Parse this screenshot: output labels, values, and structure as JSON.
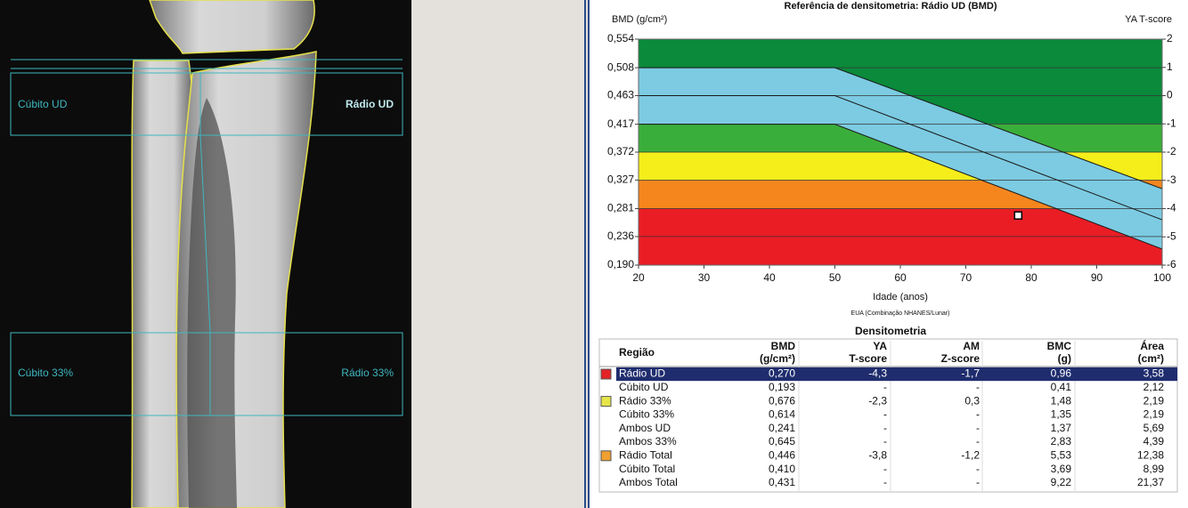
{
  "image": {
    "labels": [
      "Cúbito UD",
      "Rádio UD",
      "Cúbito 33%",
      "Rádio 33%"
    ]
  },
  "chart_data": {
    "type": "line",
    "title": "Referência de densitometria: Rádio UD (BMD)",
    "y_label": "BMD (g/cm²)",
    "y2_label": "YA T-score",
    "x_label": "Idade (anos)",
    "note": "EUA (Combinação NHANES/Lunar)",
    "x": [
      20,
      50,
      100
    ],
    "xlim": [
      20,
      100
    ],
    "xticks": [
      20,
      30,
      40,
      50,
      60,
      70,
      80,
      90,
      100
    ],
    "ylim": [
      0.19,
      0.554
    ],
    "yticks": [
      {
        "value": 0.19,
        "label": "0,190"
      },
      {
        "value": 0.236,
        "label": "0,236"
      },
      {
        "value": 0.281,
        "label": "0,281"
      },
      {
        "value": 0.327,
        "label": "0,327"
      },
      {
        "value": 0.372,
        "label": "0,372"
      },
      {
        "value": 0.417,
        "label": "0,417"
      },
      {
        "value": 0.463,
        "label": "0,463"
      },
      {
        "value": 0.508,
        "label": "0,508"
      },
      {
        "value": 0.554,
        "label": "0,554"
      }
    ],
    "y2lim": [
      -6,
      2
    ],
    "y2ticks": [
      2,
      1,
      0,
      -1,
      -2,
      -3,
      -4,
      -5,
      -6
    ],
    "bands": [
      {
        "from": -1,
        "to": 2,
        "color": "#0a8a3a"
      },
      {
        "from": -2,
        "to": -1,
        "color": "#3aae3a"
      },
      {
        "from": -3,
        "to": -2,
        "color": "#f5ee1a"
      },
      {
        "from": -4,
        "to": -3,
        "color": "#f5861e"
      },
      {
        "from": -6,
        "to": -4,
        "color": "#ea1d25"
      }
    ],
    "reference_color": "#7ccbe2",
    "series": [
      {
        "color": "#1a1a1a",
        "values": [
          0.508,
          0.508,
          0.313
        ]
      },
      {
        "color": "#1a1a1a",
        "values": [
          0.463,
          0.463,
          0.263
        ]
      },
      {
        "color": "#1a1a1a",
        "values": [
          0.417,
          0.417,
          0.216
        ]
      }
    ],
    "point": {
      "x": 78,
      "y": 0.27,
      "color": "#ffffff"
    },
    "grid": true
  },
  "table": {
    "title": "Densitometria",
    "headers": [
      [
        "Região"
      ],
      [
        "BMD",
        "(g/cm²)"
      ],
      [
        "YA",
        "T-score"
      ],
      [
        "AM",
        "Z-score"
      ],
      [
        "BMC",
        "(g)"
      ],
      [
        "Área",
        "(cm²)"
      ]
    ],
    "selected_row": 0,
    "rows": [
      {
        "cells": [
          "Rádio UD",
          "0,270",
          "-4,3",
          "-1,7",
          "0,96",
          "3,58"
        ],
        "marker": "#e32227"
      },
      {
        "cells": [
          "Cúbito UD",
          "0,193",
          "-",
          "-",
          "0,41",
          "2,12"
        ]
      },
      {
        "cells": [
          "Rádio 33%",
          "0,676",
          "-2,3",
          "0,3",
          "1,48",
          "2,19"
        ],
        "marker": "#e6e64a"
      },
      {
        "cells": [
          "Cúbito 33%",
          "0,614",
          "-",
          "-",
          "1,35",
          "2,19"
        ]
      },
      {
        "cells": [
          "Ambos UD",
          "0,241",
          "-",
          "-",
          "1,37",
          "5,69"
        ]
      },
      {
        "cells": [
          "Ambos 33%",
          "0,645",
          "-",
          "-",
          "2,83",
          "4,39"
        ]
      },
      {
        "cells": [
          "Rádio Total",
          "0,446",
          "-3,8",
          "-1,2",
          "5,53",
          "12,38"
        ],
        "marker": "#f0a030"
      },
      {
        "cells": [
          "Cúbito Total",
          "0,410",
          "-",
          "-",
          "3,69",
          "8,99"
        ]
      },
      {
        "cells": [
          "Ambos Total",
          "0,431",
          "-",
          "-",
          "9,22",
          "21,37"
        ]
      }
    ]
  }
}
